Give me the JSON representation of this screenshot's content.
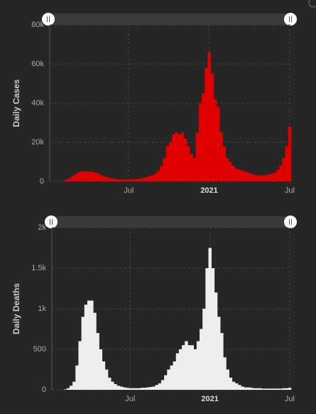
{
  "chart_data": [
    {
      "type": "bar",
      "y_label": "Daily Cases",
      "color": "#e00000",
      "grid": true,
      "categories": [
        null,
        null,
        null,
        null,
        null,
        null,
        null,
        null,
        null,
        null,
        null,
        null,
        null,
        null,
        null,
        null,
        null,
        null,
        null,
        null,
        null,
        null,
        null,
        null,
        null,
        null,
        "Jul",
        null,
        null,
        null,
        null,
        null,
        null,
        null,
        null,
        null,
        null,
        null,
        null,
        null,
        null,
        null,
        null,
        null,
        null,
        null,
        null,
        null,
        null,
        null,
        null,
        null,
        null,
        "2021",
        null,
        null,
        null,
        null,
        null,
        null,
        null,
        null,
        null,
        null,
        null,
        null,
        null,
        null,
        null,
        null,
        null,
        null,
        null,
        null,
        null,
        null,
        null,
        null,
        null,
        null,
        "Jul"
      ],
      "values": [
        0,
        0,
        0,
        100,
        300,
        800,
        1500,
        2500,
        3500,
        4500,
        5000,
        5200,
        5000,
        5100,
        4800,
        4500,
        3800,
        3000,
        2500,
        2000,
        1600,
        1300,
        1100,
        1000,
        900,
        900,
        1000,
        1000,
        1100,
        1200,
        1500,
        1800,
        2200,
        2700,
        3200,
        4000,
        5500,
        8000,
        12000,
        18000,
        20000,
        24000,
        25000,
        24000,
        25000,
        22000,
        18000,
        14000,
        12000,
        25000,
        40000,
        45000,
        58000,
        66000,
        55000,
        42000,
        38000,
        25000,
        18000,
        12000,
        10000,
        8000,
        6500,
        6000,
        5500,
        5000,
        4500,
        4000,
        3500,
        3200,
        3000,
        3000,
        3200,
        3500,
        4000,
        4500,
        6000,
        8000,
        12000,
        18000,
        28000
      ],
      "ylim": [
        0,
        80000
      ],
      "yticks": [
        0,
        {
          "value": 20000,
          "label": "20k"
        },
        {
          "value": 40000,
          "label": "40k"
        },
        {
          "value": 60000,
          "label": "60k"
        },
        {
          "value": 80000,
          "label": "80k"
        }
      ]
    },
    {
      "type": "bar",
      "y_label": "Daily Deaths",
      "color": "#eeeeee",
      "grid": true,
      "categories": [
        null,
        null,
        null,
        null,
        null,
        null,
        null,
        null,
        null,
        null,
        null,
        null,
        null,
        null,
        null,
        null,
        null,
        null,
        null,
        null,
        null,
        null,
        null,
        null,
        null,
        null,
        "Jul",
        null,
        null,
        null,
        null,
        null,
        null,
        null,
        null,
        null,
        null,
        null,
        null,
        null,
        null,
        null,
        null,
        null,
        null,
        null,
        null,
        null,
        null,
        null,
        null,
        null,
        null,
        "2021",
        null,
        null,
        null,
        null,
        null,
        null,
        null,
        null,
        null,
        null,
        null,
        null,
        null,
        null,
        null,
        null,
        null,
        null,
        null,
        null,
        null,
        null,
        null,
        null,
        null,
        null,
        "Jul"
      ],
      "values": [
        0,
        0,
        0,
        0,
        5,
        20,
        50,
        100,
        300,
        600,
        900,
        1050,
        1100,
        1100,
        950,
        700,
        500,
        350,
        250,
        150,
        100,
        70,
        50,
        40,
        30,
        25,
        20,
        20,
        20,
        20,
        25,
        25,
        30,
        35,
        40,
        60,
        80,
        120,
        180,
        250,
        300,
        350,
        450,
        500,
        550,
        600,
        550,
        550,
        500,
        600,
        750,
        1000,
        1500,
        1750,
        1500,
        1200,
        900,
        700,
        400,
        250,
        150,
        100,
        80,
        60,
        40,
        30,
        30,
        25,
        20,
        20,
        20,
        15,
        15,
        15,
        15,
        15,
        15,
        15,
        20,
        20,
        25
      ],
      "ylim": [
        0,
        2000
      ],
      "yticks": [
        0,
        500,
        {
          "value": 1000,
          "label": "1k"
        },
        {
          "value": 1500,
          "label": "1.5k"
        },
        {
          "value": 2000,
          "label": "2k"
        }
      ]
    }
  ]
}
